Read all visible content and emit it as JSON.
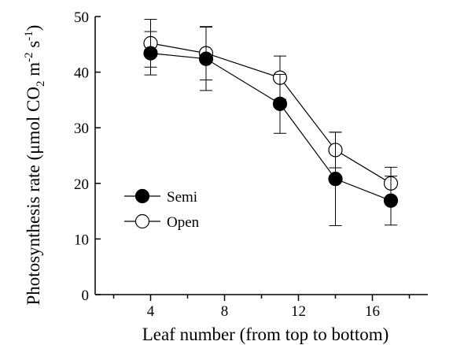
{
  "chart_data": {
    "type": "line",
    "xlabel": "Leaf number (from top to bottom)",
    "ylabel": {
      "prefix": "Photosynthesis rate (μmol CO",
      "co2_sub": "2",
      "middle": " m",
      "m_sup": "-2",
      "space": " s",
      "s_sup": "-1",
      "suffix": ")"
    },
    "xlim": [
      1,
      19
    ],
    "ylim": [
      0,
      50
    ],
    "xticks": [
      4,
      8,
      12,
      16
    ],
    "yticks": [
      0,
      10,
      20,
      30,
      40,
      50
    ],
    "legend_position": "lower-left",
    "series": [
      {
        "name": "Semi",
        "marker": "filled-circle",
        "color": "#000000",
        "x": [
          4,
          7,
          11,
          14,
          17
        ],
        "y": [
          43.4,
          42.4,
          34.3,
          20.8,
          16.9
        ],
        "err": [
          3.9,
          5.7,
          5.3,
          8.4,
          4.4
        ]
      },
      {
        "name": "Open",
        "marker": "open-circle",
        "color": "#000000",
        "x": [
          4,
          7,
          11,
          14,
          17
        ],
        "y": [
          45.2,
          43.4,
          39.0,
          26.0,
          20.0
        ],
        "err": [
          4.3,
          4.8,
          3.9,
          3.2,
          2.9
        ]
      }
    ]
  }
}
